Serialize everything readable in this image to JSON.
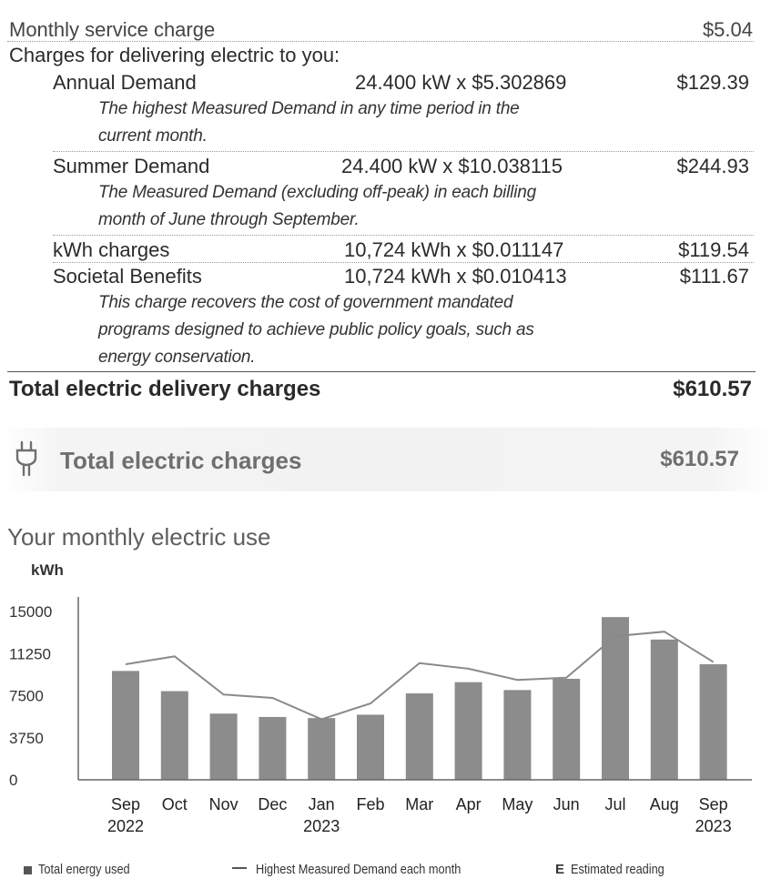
{
  "charges": {
    "service": {
      "label": "Monthly service charge",
      "amount": "$5.04"
    },
    "delivering_heading": "Charges for delivering electric to you:",
    "items": [
      {
        "label": "Annual Demand",
        "calc": "24.400 kW x $5.302869",
        "amount": "$129.39",
        "note_line1": "The highest Measured Demand in any time period in the",
        "note_line2": "current month."
      },
      {
        "label": "Summer Demand",
        "calc": "24.400 kW x $10.038115",
        "amount": "$244.93",
        "note_line1": "The Measured Demand (excluding off-peak) in each billing",
        "note_line2": "month of June through September."
      },
      {
        "label": "kWh charges",
        "calc": "10,724 kWh x $0.011147",
        "amount": "$119.54"
      },
      {
        "label": "Societal Benefits",
        "calc": "10,724 kWh x $0.010413",
        "amount": "$111.67",
        "note_line1": "This charge recovers the cost of government mandated",
        "note_line2": "programs designed to achieve public policy goals, such as",
        "note_line3": "energy conservation."
      }
    ],
    "total_delivery": {
      "label": "Total electric delivery charges",
      "amount": "$610.57"
    }
  },
  "total_electric": {
    "icon": "plug-icon",
    "label": "Total electric charges",
    "amount": "$610.57"
  },
  "usage": {
    "heading": "Your monthly electric use"
  },
  "chart_data": {
    "type": "bar",
    "ylabel": "kWh",
    "ylim": [
      0,
      15000
    ],
    "yticks": [
      "15000",
      "11250",
      "7500",
      "3750",
      "0"
    ],
    "categories": [
      "Sep",
      "Oct",
      "Nov",
      "Dec",
      "Jan",
      "Feb",
      "Mar",
      "Apr",
      "May",
      "Jun",
      "Jul",
      "Aug",
      "Sep"
    ],
    "category_years": [
      "2022",
      "",
      "",
      "",
      "2023",
      "",
      "",
      "",
      "",
      "",
      "",
      "",
      "2023"
    ],
    "series": [
      {
        "name": "Total energy used",
        "kind": "bar",
        "color": "#8c8c8c",
        "values": [
          9700,
          7900,
          5900,
          5600,
          5500,
          5800,
          7700,
          8700,
          8000,
          9000,
          14500,
          12500,
          10300
        ]
      },
      {
        "name": "Highest Measured Demand each month",
        "kind": "line",
        "color": "#8a8a8a",
        "values": [
          10300,
          11000,
          7600,
          7300,
          5400,
          6800,
          10400,
          9900,
          8900,
          9100,
          12800,
          13200,
          10500
        ]
      }
    ],
    "legend": {
      "bar_label": "Total energy used",
      "line_label": "Highest Measured Demand each month",
      "estimated_symbol": "E",
      "estimated_label": "Estimated reading"
    },
    "legend_position": "bottom",
    "grid": false
  }
}
